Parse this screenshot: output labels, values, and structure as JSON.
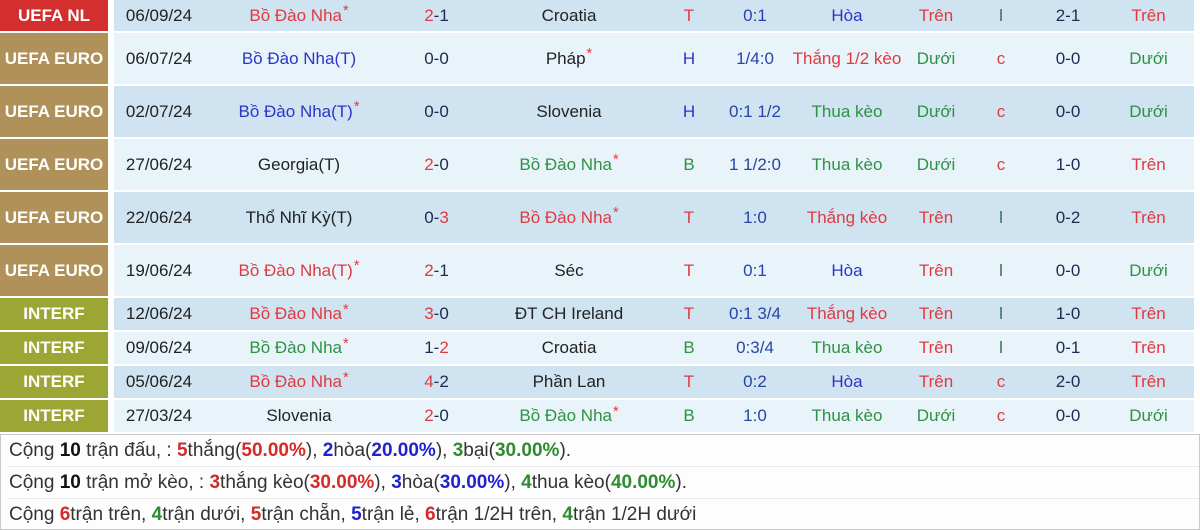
{
  "colors": {
    "comp_uefa_nl_bg": "#d32f2f",
    "comp_uefa_euro_bg": "#b09159",
    "comp_interf_bg": "#9ca635",
    "row_dark_bg": "#cfe3f1",
    "row_light_bg": "#e9f4fa",
    "text_red": "#e03a40",
    "text_blue": "#2b35c9",
    "text_green": "#2f9143",
    "text_navy": "#1c2b4f",
    "text_handicap_blue": "#2844a8",
    "text_odd_green": "#356f54"
  },
  "table": {
    "rows": [
      {
        "competition": "UEFA NL",
        "comp_class": "red",
        "size": "h33",
        "shade": "dark",
        "date": "06/09/24",
        "home": {
          "name": "Bồ Đào Nha",
          "star": true,
          "color": "red"
        },
        "score": {
          "h": "2",
          "a": "1",
          "hc": "red",
          "ac": "navy"
        },
        "away": {
          "name": "Croatia",
          "star": false,
          "color": "black"
        },
        "letter": {
          "t": "T",
          "color": "red"
        },
        "handicap": "0:1",
        "bet": {
          "t": "Hòa",
          "color": "blue"
        },
        "ou1": {
          "t": "Trên",
          "color": "red"
        },
        "oe": {
          "t": "l",
          "color": "oddl"
        },
        "ht": "2-1",
        "ou2": {
          "t": "Trên",
          "color": "red"
        }
      },
      {
        "competition": "UEFA EURO",
        "comp_class": "tan",
        "size": "h53",
        "shade": "light",
        "date": "06/07/24",
        "home": {
          "name": "Bồ Đào Nha(T)",
          "star": false,
          "color": "blue"
        },
        "score": {
          "h": "0",
          "a": "0",
          "hc": "navy",
          "ac": "navy"
        },
        "away": {
          "name": "Pháp",
          "star": true,
          "color": "black"
        },
        "letter": {
          "t": "H",
          "color": "blue"
        },
        "handicap": "1/4:0",
        "bet": {
          "t": "Thắng 1/2 kèo",
          "color": "red"
        },
        "ou1": {
          "t": "Dưới",
          "color": "green"
        },
        "oe": {
          "t": "c",
          "color": "red"
        },
        "ht": "0-0",
        "ou2": {
          "t": "Dưới",
          "color": "green"
        }
      },
      {
        "competition": "UEFA EURO",
        "comp_class": "tan",
        "size": "h53",
        "shade": "dark",
        "date": "02/07/24",
        "home": {
          "name": "Bồ Đào Nha(T)",
          "star": true,
          "color": "blue"
        },
        "score": {
          "h": "0",
          "a": "0",
          "hc": "navy",
          "ac": "navy"
        },
        "away": {
          "name": "Slovenia",
          "star": false,
          "color": "black"
        },
        "letter": {
          "t": "H",
          "color": "blue"
        },
        "handicap": "0:1 1/2",
        "bet": {
          "t": "Thua kèo",
          "color": "green"
        },
        "ou1": {
          "t": "Dưới",
          "color": "green"
        },
        "oe": {
          "t": "c",
          "color": "red"
        },
        "ht": "0-0",
        "ou2": {
          "t": "Dưới",
          "color": "green"
        }
      },
      {
        "competition": "UEFA EURO",
        "comp_class": "tan",
        "size": "h53",
        "shade": "light",
        "date": "27/06/24",
        "home": {
          "name": "Georgia(T)",
          "star": false,
          "color": "black"
        },
        "score": {
          "h": "2",
          "a": "0",
          "hc": "red",
          "ac": "navy"
        },
        "away": {
          "name": "Bồ Đào Nha",
          "star": true,
          "color": "green"
        },
        "letter": {
          "t": "B",
          "color": "green"
        },
        "handicap": "1 1/2:0",
        "bet": {
          "t": "Thua kèo",
          "color": "green"
        },
        "ou1": {
          "t": "Dưới",
          "color": "green"
        },
        "oe": {
          "t": "c",
          "color": "red"
        },
        "ht": "1-0",
        "ou2": {
          "t": "Trên",
          "color": "red"
        }
      },
      {
        "competition": "UEFA EURO",
        "comp_class": "tan",
        "size": "h53",
        "shade": "dark",
        "date": "22/06/24",
        "home": {
          "name": "Thổ Nhĩ Kỳ(T)",
          "star": false,
          "color": "black"
        },
        "score": {
          "h": "0",
          "a": "3",
          "hc": "navy",
          "ac": "red"
        },
        "away": {
          "name": "Bồ Đào Nha",
          "star": true,
          "color": "red"
        },
        "letter": {
          "t": "T",
          "color": "red"
        },
        "handicap": "1:0",
        "bet": {
          "t": "Thắng kèo",
          "color": "red"
        },
        "ou1": {
          "t": "Trên",
          "color": "red"
        },
        "oe": {
          "t": "l",
          "color": "oddl"
        },
        "ht": "0-2",
        "ou2": {
          "t": "Trên",
          "color": "red"
        }
      },
      {
        "competition": "UEFA EURO",
        "comp_class": "tan",
        "size": "h53",
        "shade": "light",
        "date": "19/06/24",
        "home": {
          "name": "Bồ Đào Nha(T)",
          "star": true,
          "color": "red"
        },
        "score": {
          "h": "2",
          "a": "1",
          "hc": "red",
          "ac": "navy"
        },
        "away": {
          "name": "Séc",
          "star": false,
          "color": "black"
        },
        "letter": {
          "t": "T",
          "color": "red"
        },
        "handicap": "0:1",
        "bet": {
          "t": "Hòa",
          "color": "blue"
        },
        "ou1": {
          "t": "Trên",
          "color": "red"
        },
        "oe": {
          "t": "l",
          "color": "oddl"
        },
        "ht": "0-0",
        "ou2": {
          "t": "Dưới",
          "color": "green"
        }
      },
      {
        "competition": "INTERF",
        "comp_class": "olive",
        "size": "h34",
        "shade": "dark",
        "date": "12/06/24",
        "home": {
          "name": "Bồ Đào Nha",
          "star": true,
          "color": "red"
        },
        "score": {
          "h": "3",
          "a": "0",
          "hc": "red",
          "ac": "navy"
        },
        "away": {
          "name": "ĐT CH Ireland",
          "star": false,
          "color": "black"
        },
        "letter": {
          "t": "T",
          "color": "red"
        },
        "handicap": "0:1 3/4",
        "bet": {
          "t": "Thắng kèo",
          "color": "red"
        },
        "ou1": {
          "t": "Trên",
          "color": "red"
        },
        "oe": {
          "t": "l",
          "color": "oddl"
        },
        "ht": "1-0",
        "ou2": {
          "t": "Trên",
          "color": "red"
        }
      },
      {
        "competition": "INTERF",
        "comp_class": "olive",
        "size": "h34",
        "shade": "light",
        "date": "09/06/24",
        "home": {
          "name": "Bồ Đào Nha",
          "star": true,
          "color": "green"
        },
        "score": {
          "h": "1",
          "a": "2",
          "hc": "navy",
          "ac": "red"
        },
        "away": {
          "name": "Croatia",
          "star": false,
          "color": "black"
        },
        "letter": {
          "t": "B",
          "color": "green"
        },
        "handicap": "0:3/4",
        "bet": {
          "t": "Thua kèo",
          "color": "green"
        },
        "ou1": {
          "t": "Trên",
          "color": "red"
        },
        "oe": {
          "t": "l",
          "color": "oddl"
        },
        "ht": "0-1",
        "ou2": {
          "t": "Trên",
          "color": "red"
        }
      },
      {
        "competition": "INTERF",
        "comp_class": "olive",
        "size": "h34",
        "shade": "dark",
        "date": "05/06/24",
        "home": {
          "name": "Bồ Đào Nha",
          "star": true,
          "color": "red"
        },
        "score": {
          "h": "4",
          "a": "2",
          "hc": "red",
          "ac": "navy"
        },
        "away": {
          "name": "Phần Lan",
          "star": false,
          "color": "black"
        },
        "letter": {
          "t": "T",
          "color": "red"
        },
        "handicap": "0:2",
        "bet": {
          "t": "Hòa",
          "color": "blue"
        },
        "ou1": {
          "t": "Trên",
          "color": "red"
        },
        "oe": {
          "t": "c",
          "color": "red"
        },
        "ht": "2-0",
        "ou2": {
          "t": "Trên",
          "color": "red"
        }
      },
      {
        "competition": "INTERF",
        "comp_class": "olive",
        "size": "h34",
        "shade": "light",
        "date": "27/03/24",
        "home": {
          "name": "Slovenia",
          "star": false,
          "color": "black"
        },
        "score": {
          "h": "2",
          "a": "0",
          "hc": "red",
          "ac": "navy"
        },
        "away": {
          "name": "Bồ Đào Nha",
          "star": true,
          "color": "green"
        },
        "letter": {
          "t": "B",
          "color": "green"
        },
        "handicap": "1:0",
        "bet": {
          "t": "Thua kèo",
          "color": "green"
        },
        "ou1": {
          "t": "Dưới",
          "color": "green"
        },
        "oe": {
          "t": "c",
          "color": "red"
        },
        "ht": "0-0",
        "ou2": {
          "t": "Dưới",
          "color": "green"
        }
      }
    ]
  },
  "summary": {
    "lines": [
      [
        {
          "t": "Cộng ",
          "c": "plain"
        },
        {
          "t": "10",
          "c": "bold"
        },
        {
          "t": " trận đấu, : ",
          "c": "plain"
        },
        {
          "t": "5",
          "c": "red"
        },
        {
          "t": "thắng(",
          "c": "plain"
        },
        {
          "t": "50.00%",
          "c": "red"
        },
        {
          "t": "), ",
          "c": "plain"
        },
        {
          "t": "2",
          "c": "blue"
        },
        {
          "t": "hòa(",
          "c": "plain"
        },
        {
          "t": "20.00%",
          "c": "blue"
        },
        {
          "t": "), ",
          "c": "plain"
        },
        {
          "t": "3",
          "c": "green"
        },
        {
          "t": "bại(",
          "c": "plain"
        },
        {
          "t": "30.00%",
          "c": "green"
        },
        {
          "t": ").",
          "c": "plain"
        }
      ],
      [
        {
          "t": "Cộng ",
          "c": "plain"
        },
        {
          "t": "10",
          "c": "bold"
        },
        {
          "t": " trận mở kèo, : ",
          "c": "plain"
        },
        {
          "t": "3",
          "c": "red"
        },
        {
          "t": "thắng kèo(",
          "c": "plain"
        },
        {
          "t": "30.00%",
          "c": "red"
        },
        {
          "t": "), ",
          "c": "plain"
        },
        {
          "t": "3",
          "c": "blue"
        },
        {
          "t": "hòa(",
          "c": "plain"
        },
        {
          "t": "30.00%",
          "c": "blue"
        },
        {
          "t": "), ",
          "c": "plain"
        },
        {
          "t": "4",
          "c": "green"
        },
        {
          "t": "thua kèo(",
          "c": "plain"
        },
        {
          "t": "40.00%",
          "c": "green"
        },
        {
          "t": ").",
          "c": "plain"
        }
      ],
      [
        {
          "t": "Cộng ",
          "c": "plain"
        },
        {
          "t": "6",
          "c": "red"
        },
        {
          "t": "trận trên, ",
          "c": "plain"
        },
        {
          "t": "4",
          "c": "green"
        },
        {
          "t": "trận dưới, ",
          "c": "plain"
        },
        {
          "t": "5",
          "c": "red"
        },
        {
          "t": "trận chẵn, ",
          "c": "plain"
        },
        {
          "t": "5",
          "c": "blue"
        },
        {
          "t": "trận lẻ, ",
          "c": "plain"
        },
        {
          "t": "6",
          "c": "red"
        },
        {
          "t": "trận 1/2H trên, ",
          "c": "plain"
        },
        {
          "t": "4",
          "c": "green"
        },
        {
          "t": "trận 1/2H dưới",
          "c": "plain"
        }
      ]
    ]
  }
}
